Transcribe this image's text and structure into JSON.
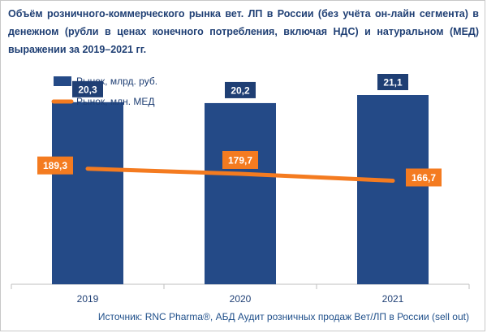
{
  "chart_data": {
    "type": "bar+line",
    "title": "Объём розничного-коммерческого рынка вет. ЛП в России (без учёта он-лайн сегмента) в денежном (рубли в ценах конечного потребления, включая НДС) и натуральном (МЕД) выражении за 2019–2021 гг.",
    "categories": [
      "2019",
      "2020",
      "2021"
    ],
    "series": [
      {
        "name": "Рынок, млрд. руб.",
        "type": "bar",
        "axis": "primary",
        "values": [
          20.3,
          20.2,
          21.1
        ],
        "labels": [
          "20,3",
          "20,2",
          "21,1"
        ],
        "color": "#244a87"
      },
      {
        "name": "Рынок, млн. МЕД",
        "type": "line",
        "axis": "secondary",
        "values": [
          189.3,
          179.7,
          166.7
        ],
        "labels": [
          "189,3",
          "179,7",
          "166,7"
        ],
        "color": "#f47b20"
      }
    ],
    "bar_label_color": "#1f3f74",
    "line_label_color": "#f47b20",
    "legend_position": "top-left",
    "grid": false
  },
  "source": "Источник: RNC Pharma®, АБД Аудит розничных продаж Вет/ЛП в России (sell out)"
}
